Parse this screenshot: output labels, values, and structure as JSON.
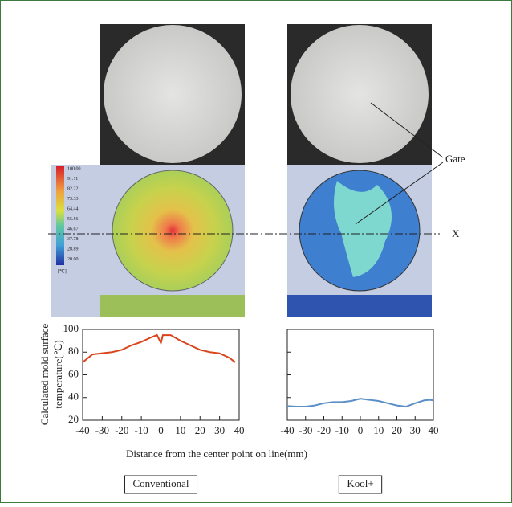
{
  "color_scale": {
    "labels": [
      "100.00",
      "91.11",
      "82.22",
      "73.33",
      "64.44",
      "55.56",
      "46.67",
      "37.78",
      "28.89",
      "20.00"
    ],
    "unit": "[℃]"
  },
  "annotations": {
    "gate": "Gate",
    "line": "X"
  },
  "ylabel_lines": [
    "Calculated mold surface",
    "temperature(℃)"
  ],
  "xlabel": "Distance from the center point on line(mm)",
  "chart_data": [
    {
      "type": "line",
      "panel": "Conventional",
      "x": [
        -40,
        -35,
        -30,
        -25,
        -20,
        -15,
        -10,
        -5,
        -2,
        0,
        1,
        5,
        10,
        15,
        20,
        25,
        30,
        35,
        38
      ],
      "series": [
        {
          "color": "#d9441c",
          "values": [
            71,
            78,
            79,
            80,
            82,
            86,
            89,
            93,
            95,
            88,
            95,
            95,
            90,
            86,
            82,
            80,
            79,
            75,
            71
          ]
        }
      ],
      "xlim": [
        -40,
        40
      ],
      "ylim": [
        20,
        100
      ],
      "xticks": [
        -40,
        -30,
        -20,
        -10,
        0,
        10,
        20,
        30,
        40
      ],
      "yticks": [
        20,
        40,
        60,
        80,
        100
      ]
    },
    {
      "type": "line",
      "panel": "Kool+",
      "x": [
        -40,
        -35,
        -30,
        -25,
        -20,
        -15,
        -10,
        -5,
        0,
        5,
        10,
        15,
        20,
        25,
        30,
        35,
        38,
        40
      ],
      "series": [
        {
          "color": "#5a8fc8",
          "values": [
            32.5,
            32,
            32,
            33,
            35,
            36,
            36,
            37,
            39,
            38,
            37,
            35,
            33,
            32,
            35,
            37.5,
            38,
            37.5
          ]
        }
      ],
      "xlim": [
        -40,
        40
      ],
      "ylim": [
        20,
        100
      ],
      "xticks": [
        -40,
        -30,
        -20,
        -10,
        0,
        10,
        20,
        30,
        40
      ],
      "yticks": [
        20,
        40,
        60,
        80,
        100
      ]
    }
  ]
}
